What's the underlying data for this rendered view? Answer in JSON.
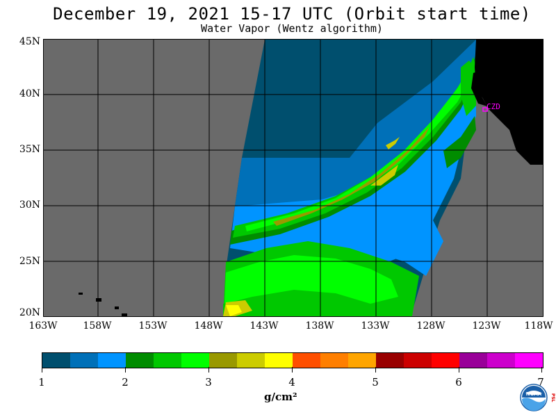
{
  "header": {
    "title": "December 19, 2021  15-17 UTC  (Orbit start time)",
    "subtitle": "Water Vapor (Wentz algorithm)"
  },
  "map": {
    "lat_labels": [
      "45N",
      "40N",
      "35N",
      "30N",
      "25N",
      "20N"
    ],
    "lon_labels": [
      "163W",
      "158W",
      "153W",
      "148W",
      "143W",
      "138W",
      "133W",
      "128W",
      "123W",
      "118W"
    ],
    "station_label": "CZD",
    "colors": {
      "no_data": "#6a6a6a",
      "land": "#000000",
      "grid": "#000000",
      "station": "#ff00ff"
    }
  },
  "colorbar": {
    "labels": [
      "1",
      "2",
      "3",
      "4",
      "5",
      "6",
      "7"
    ],
    "units": "g/cm²",
    "colors": [
      "#004f6e",
      "#0070b8",
      "#0094ff",
      "#008c00",
      "#00c800",
      "#00ff00",
      "#999900",
      "#cccc00",
      "#ffff00",
      "#ff4f00",
      "#ff7f00",
      "#ffa500",
      "#990000",
      "#cc0000",
      "#ff0000",
      "#990099",
      "#cc00cc",
      "#ff00ff"
    ]
  },
  "logo": {
    "text": "NOAA",
    "side_text": "PSL"
  }
}
